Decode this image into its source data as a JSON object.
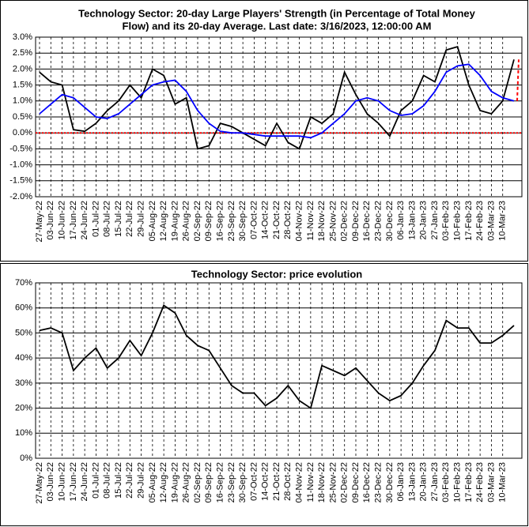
{
  "chart_data": [
    {
      "type": "line",
      "title": [
        "Technology Sector: 20-day Large Players' Strength (in Percentage of Total Money",
        "Flow) and its 20-day Average. Last date: 3/16/2023, 12:00:00 AM"
      ],
      "categories": [
        "27-May-22",
        "03-Jun-22",
        "10-Jun-22",
        "17-Jun-22",
        "24-Jun-22",
        "01-Jul-22",
        "08-Jul-22",
        "15-Jul-22",
        "22-Jul-22",
        "29-Jul-22",
        "05-Aug-22",
        "12-Aug-22",
        "19-Aug-22",
        "26-Aug-22",
        "02-Sep-22",
        "09-Sep-22",
        "16-Sep-22",
        "23-Sep-22",
        "30-Sep-22",
        "07-Oct-22",
        "14-Oct-22",
        "21-Oct-22",
        "28-Oct-22",
        "04-Nov-22",
        "11-Nov-22",
        "18-Nov-22",
        "25-Nov-22",
        "02-Dec-22",
        "09-Dec-22",
        "16-Dec-22",
        "23-Dec-22",
        "30-Dec-22",
        "06-Jan-23",
        "13-Jan-23",
        "20-Jan-23",
        "27-Jan-23",
        "03-Feb-23",
        "10-Feb-23",
        "17-Feb-23",
        "24-Feb-23",
        "03-Mar-23",
        "10-Mar-23",
        null
      ],
      "series": [
        {
          "color": "#000000",
          "values": [
            1.9,
            1.6,
            1.5,
            0.1,
            0.05,
            0.3,
            0.7,
            1.0,
            1.5,
            1.1,
            2.0,
            1.8,
            0.9,
            1.1,
            -0.5,
            -0.4,
            0.3,
            0.2,
            0.0,
            -0.2,
            -0.4,
            0.3,
            -0.3,
            -0.5,
            0.5,
            0.3,
            0.6,
            1.9,
            1.2,
            0.6,
            0.3,
            -0.1,
            0.7,
            1.0,
            1.8,
            1.6,
            2.6,
            2.7,
            1.5,
            0.7,
            0.6,
            1.0,
            2.3
          ]
        },
        {
          "color": "#0000ff",
          "values": [
            0.6,
            0.9,
            1.2,
            1.1,
            0.8,
            0.5,
            0.45,
            0.6,
            0.9,
            1.2,
            1.5,
            1.6,
            1.65,
            1.3,
            0.7,
            0.3,
            0.05,
            0.0,
            0.0,
            -0.05,
            -0.1,
            -0.1,
            -0.1,
            -0.1,
            -0.15,
            0.0,
            0.3,
            0.6,
            1.0,
            1.1,
            1.0,
            0.7,
            0.55,
            0.6,
            0.85,
            1.3,
            1.9,
            2.1,
            2.15,
            1.8,
            1.3,
            1.1,
            1.0
          ]
        }
      ],
      "ylim": [
        -2,
        3
      ],
      "yticks": [
        {
          "value": -2,
          "label": "-2.0%"
        },
        {
          "value": -1.5,
          "label": "-1.5%"
        },
        {
          "value": -1,
          "label": "-1.0%"
        },
        {
          "value": -0.5,
          "label": "-0.5%"
        },
        {
          "value": 0,
          "label": "0.0%"
        },
        {
          "value": 0.5,
          "label": "0.5%"
        },
        {
          "value": 1,
          "label": "1.0%"
        },
        {
          "value": 1.5,
          "label": "1.5%"
        },
        {
          "value": 2,
          "label": "2.0%"
        },
        {
          "value": 2.5,
          "label": "2.5%"
        },
        {
          "value": 3,
          "label": "3.0%"
        }
      ],
      "reference_line": {
        "value": 0,
        "color": "#ff0000"
      },
      "grid": true
    },
    {
      "type": "line",
      "title": [
        "Technology Sector: price evolution"
      ],
      "categories": [
        "27-May-22",
        "03-Jun-22",
        "10-Jun-22",
        "17-Jun-22",
        "24-Jun-22",
        "01-Jul-22",
        "08-Jul-22",
        "15-Jul-22",
        "22-Jul-22",
        "29-Jul-22",
        "05-Aug-22",
        "12-Aug-22",
        "19-Aug-22",
        "26-Aug-22",
        "02-Sep-22",
        "09-Sep-22",
        "16-Sep-22",
        "23-Sep-22",
        "30-Sep-22",
        "07-Oct-22",
        "14-Oct-22",
        "21-Oct-22",
        "28-Oct-22",
        "04-Nov-22",
        "11-Nov-22",
        "18-Nov-22",
        "25-Nov-22",
        "02-Dec-22",
        "09-Dec-22",
        "16-Dec-22",
        "23-Dec-22",
        "30-Dec-22",
        "06-Jan-23",
        "13-Jan-23",
        "20-Jan-23",
        "27-Jan-23",
        "03-Feb-23",
        "10-Feb-23",
        "17-Feb-23",
        "24-Feb-23",
        "03-Mar-23",
        "10-Mar-23",
        null
      ],
      "series": [
        {
          "color": "#000000",
          "values": [
            51,
            52,
            50,
            35,
            40,
            44,
            36,
            40,
            47,
            41,
            50,
            61,
            58,
            49,
            45,
            43,
            36,
            29,
            26,
            26,
            21,
            24,
            29,
            23,
            20,
            37,
            35,
            33,
            36,
            31,
            26,
            23,
            25,
            30,
            37,
            43,
            55,
            52,
            52,
            46,
            46,
            49,
            53
          ]
        }
      ],
      "ylim": [
        0,
        70
      ],
      "yticks": [
        {
          "value": 0,
          "label": "0%"
        },
        {
          "value": 10,
          "label": "10%"
        },
        {
          "value": 20,
          "label": "20%"
        },
        {
          "value": 30,
          "label": "30%"
        },
        {
          "value": 40,
          "label": "40%"
        },
        {
          "value": 50,
          "label": "50%"
        },
        {
          "value": 60,
          "label": "60%"
        },
        {
          "value": 70,
          "label": "70%"
        }
      ],
      "grid": true
    }
  ]
}
